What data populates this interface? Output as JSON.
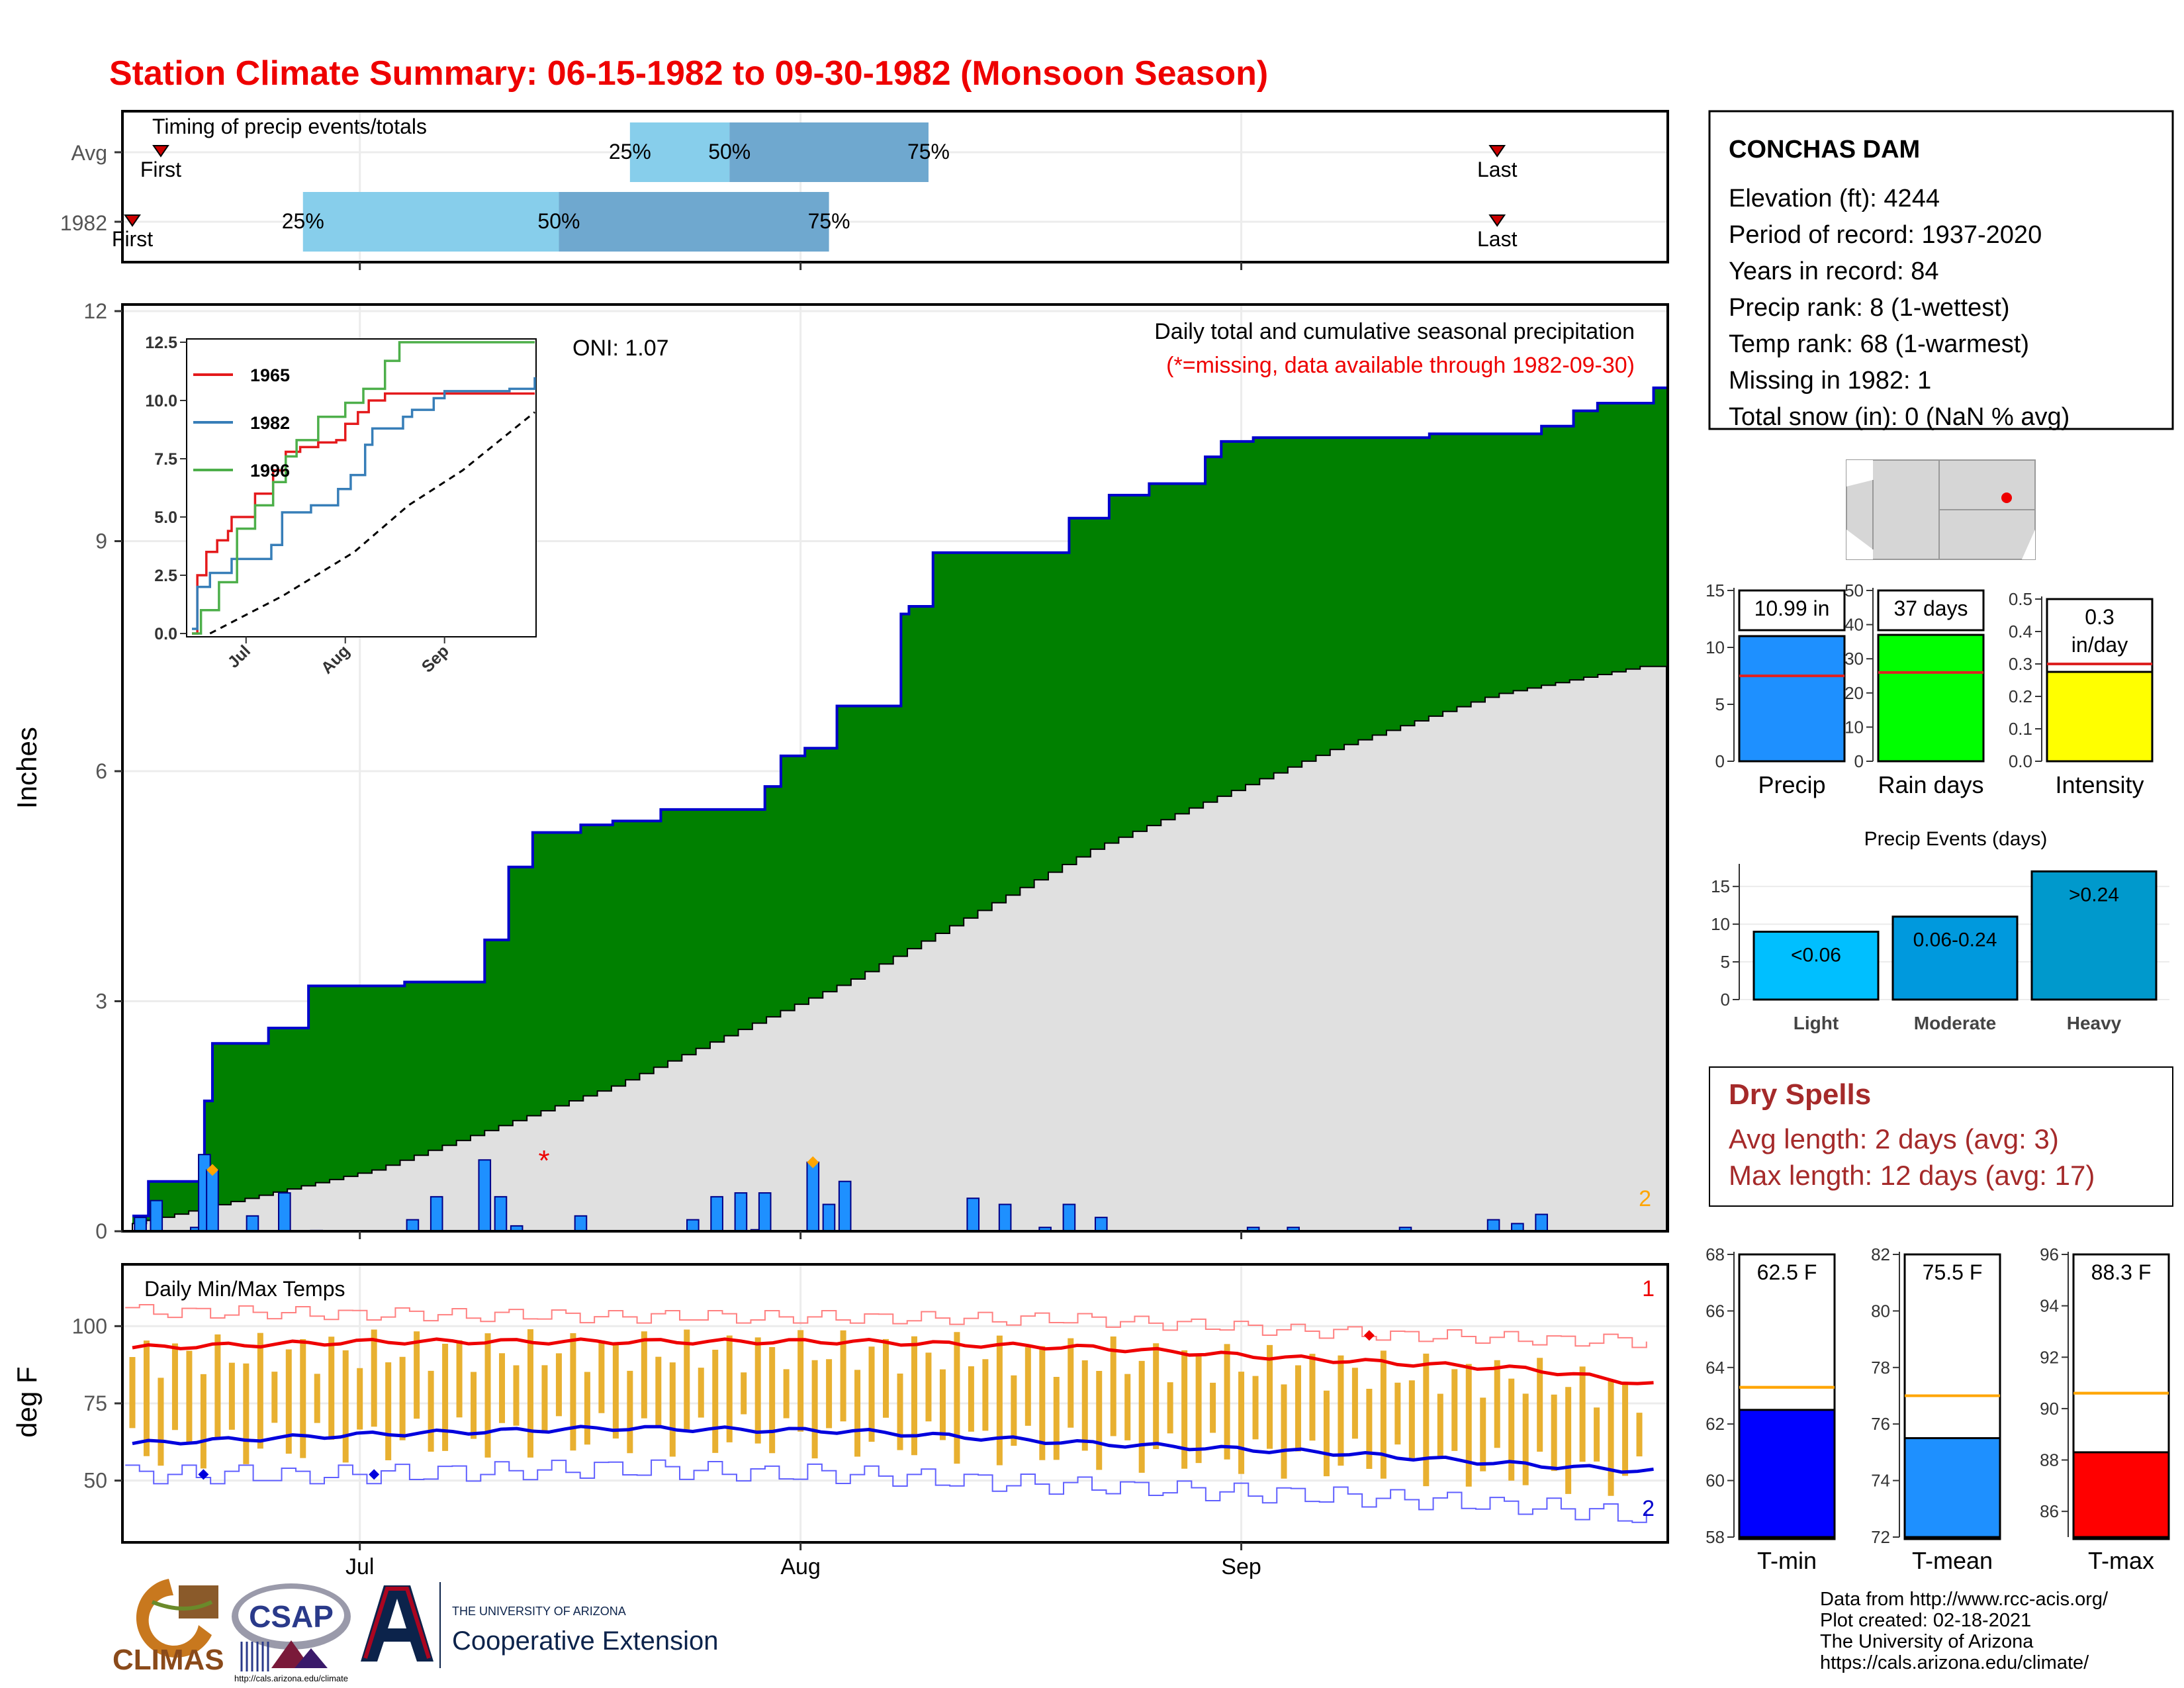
{
  "title": "Station Climate Summary: 06-15-1982 to 09-30-1982 (Monsoon Season)",
  "colors": {
    "title": "#ee0000",
    "precip_fill": "#008000",
    "precip_line": "#0000cc",
    "avg_fill": "#e0e0e0",
    "daily_bar": "#1e90ff",
    "quartile_light": "#87ceeb",
    "quartile_dark": "#6fa8cf",
    "tmax_line": "#ee0000",
    "tmin_line": "#0000dd",
    "temp_bar": "#e8b030",
    "dry_spells": "#a52a2a"
  },
  "timing": {
    "label": "Timing of precip events/totals",
    "rows": [
      {
        "label": "Avg",
        "first": "First",
        "last": "Last",
        "q25": "25%",
        "q50": "50%",
        "q75": "75%",
        "first_date": "1982-06-17",
        "q25_date": "1982-07-20",
        "q50_date": "1982-07-27",
        "q75_date": "1982-08-10",
        "last_date": "1982-09-19"
      },
      {
        "label": "1982",
        "first": "First",
        "last": "Last",
        "q25": "25%",
        "q50": "50%",
        "q75": "75%",
        "first_date": "1982-06-15",
        "q25_date": "1982-06-27",
        "q50_date": "1982-07-15",
        "q75_date": "1982-08-03",
        "last_date": "1982-09-19"
      }
    ]
  },
  "station": {
    "name": "CONCHAS DAM",
    "lines": [
      "Elevation (ft): 4244",
      "Period of record: 1937-2020",
      "Years in record: 84",
      "Precip rank: 8 (1-wettest)",
      "Temp rank: 68 (1-warmest)",
      "Missing in 1982: 1",
      "Total snow (in): 0 (NaN % avg)"
    ]
  },
  "precip_panel": {
    "oni": "ONI: 1.07",
    "note1": "Daily total and cumulative seasonal precipitation",
    "note2": "(*=missing, data available through 1982-09-30)",
    "missing_marker": "*",
    "corner_count": "2",
    "ylabel": "Inches",
    "yticks": [
      "0",
      "3",
      "6",
      "9",
      "12"
    ]
  },
  "x_axis": {
    "ticks": [
      "Jul",
      "Aug",
      "Sep"
    ]
  },
  "chart_data": [
    {
      "type": "area",
      "name": "cumulative-precip",
      "x_start": "1982-06-15",
      "x_end": "1982-09-30",
      "ylim": [
        0,
        12
      ],
      "cumulative_1982": [
        [
          0,
          0.2
        ],
        [
          2,
          0.65
        ],
        [
          9,
          1.7
        ],
        [
          10,
          2.45
        ],
        [
          17,
          2.65
        ],
        [
          22,
          3.2
        ],
        [
          34,
          3.25
        ],
        [
          44,
          3.8
        ],
        [
          47,
          4.75
        ],
        [
          50,
          5.2
        ],
        [
          56,
          5.3
        ],
        [
          60,
          5.35
        ],
        [
          66,
          5.5
        ],
        [
          79,
          5.8
        ],
        [
          81,
          6.2
        ],
        [
          84,
          6.3
        ],
        [
          88,
          6.85
        ],
        [
          96,
          8.05
        ],
        [
          97,
          8.15
        ],
        [
          100,
          8.85
        ],
        [
          117,
          9.3
        ],
        [
          122,
          9.6
        ],
        [
          127,
          9.75
        ],
        [
          134,
          10.1
        ],
        [
          136,
          10.3
        ],
        [
          140,
          10.35
        ],
        [
          162,
          10.4
        ],
        [
          176,
          10.5
        ],
        [
          180,
          10.7
        ],
        [
          183,
          10.8
        ],
        [
          190,
          11.0
        ]
      ],
      "cumulative_avg": [
        [
          0,
          0.1
        ],
        [
          30,
          0.8
        ],
        [
          60,
          1.9
        ],
        [
          90,
          3.3
        ],
        [
          120,
          5.0
        ],
        [
          150,
          6.3
        ],
        [
          170,
          7.0
        ],
        [
          190,
          7.4
        ]
      ],
      "daily_bars": [
        [
          1,
          0.18
        ],
        [
          3,
          0.4
        ],
        [
          8,
          0.05
        ],
        [
          9,
          1.0
        ],
        [
          10,
          0.8
        ],
        [
          15,
          0.2
        ],
        [
          19,
          0.5
        ],
        [
          23,
          0.01
        ],
        [
          35,
          0.15
        ],
        [
          38,
          0.45
        ],
        [
          44,
          0.93
        ],
        [
          46,
          0.45
        ],
        [
          48,
          0.07
        ],
        [
          56,
          0.2
        ],
        [
          70,
          0.15
        ],
        [
          73,
          0.45
        ],
        [
          76,
          0.5
        ],
        [
          78,
          0.02
        ],
        [
          79,
          0.5
        ],
        [
          85,
          0.9
        ],
        [
          87,
          0.35
        ],
        [
          89,
          0.65
        ],
        [
          105,
          0.43
        ],
        [
          109,
          0.35
        ],
        [
          114,
          0.05
        ],
        [
          117,
          0.35
        ],
        [
          121,
          0.18
        ],
        [
          140,
          0.05
        ],
        [
          145,
          0.05
        ],
        [
          159,
          0.05
        ],
        [
          170,
          0.15
        ],
        [
          173,
          0.1
        ],
        [
          176,
          0.22
        ]
      ]
    },
    {
      "type": "line",
      "name": "inset-cumulative",
      "x_ticks": [
        "Jul",
        "Aug",
        "Sep"
      ],
      "y_ticks": [
        "0.0",
        "2.5",
        "5.0",
        "7.5",
        "10.0",
        "12.5"
      ],
      "ylim": [
        0,
        12.5
      ],
      "series": [
        {
          "name": "1965",
          "color": "#e41a1c",
          "values": [
            [
              0,
              0
            ],
            [
              3,
              2.5
            ],
            [
              8,
              3.5
            ],
            [
              14,
              4.0
            ],
            [
              20,
              4.4
            ],
            [
              22,
              5.0
            ],
            [
              35,
              6.0
            ],
            [
              45,
              7.0
            ],
            [
              52,
              7.8
            ],
            [
              60,
              8.0
            ],
            [
              70,
              8.2
            ],
            [
              80,
              8.3
            ],
            [
              85,
              9.0
            ],
            [
              92,
              9.5
            ],
            [
              98,
              10.0
            ],
            [
              107,
              10.3
            ]
          ]
        },
        {
          "name": "1982",
          "color": "#377eb8",
          "values": [
            [
              0,
              0.2
            ],
            [
              3,
              2.0
            ],
            [
              10,
              2.6
            ],
            [
              22,
              3.2
            ],
            [
              44,
              3.8
            ],
            [
              50,
              5.2
            ],
            [
              66,
              5.5
            ],
            [
              81,
              6.2
            ],
            [
              88,
              6.8
            ],
            [
              96,
              8.1
            ],
            [
              100,
              8.8
            ],
            [
              117,
              9.3
            ],
            [
              122,
              9.6
            ],
            [
              134,
              10.1
            ],
            [
              140,
              10.4
            ],
            [
              176,
              10.5
            ],
            [
              190,
              11.0
            ]
          ]
        },
        {
          "name": "1996",
          "color": "#4daf4a",
          "values": [
            [
              0,
              0
            ],
            [
              5,
              1.0
            ],
            [
              15,
              2.2
            ],
            [
              25,
              4.5
            ],
            [
              35,
              5.5
            ],
            [
              45,
              6.5
            ],
            [
              52,
              7.6
            ],
            [
              58,
              8.3
            ],
            [
              70,
              9.3
            ],
            [
              85,
              9.9
            ],
            [
              95,
              10.5
            ],
            [
              107,
              11.7
            ],
            [
              115,
              12.5
            ]
          ]
        }
      ],
      "average_dashed": true
    },
    {
      "type": "bar",
      "name": "precip-totals",
      "categories": [
        "Precip",
        "Rain days",
        "Intensity"
      ],
      "values": [
        10.99,
        37,
        0.3
      ],
      "labels": [
        "10.99 in",
        "37 days",
        "0.3 in/day"
      ],
      "averages": [
        7.5,
        26,
        0.3
      ],
      "ylims": [
        [
          0,
          15
        ],
        [
          0,
          50
        ],
        [
          0,
          0.5
        ]
      ],
      "yticks": [
        [
          "0",
          "5",
          "10",
          "15"
        ],
        [
          "0",
          "10",
          "20",
          "30",
          "40",
          "50"
        ],
        [
          "0.0",
          "0.1",
          "0.2",
          "0.3",
          "0.4",
          "0.5"
        ]
      ],
      "colors": [
        "#1e90ff",
        "#00ff00",
        "#ffff00"
      ]
    },
    {
      "type": "bar",
      "name": "precip-events",
      "title": "Precip Events (days)",
      "categories": [
        "Light",
        "Moderate",
        "Heavy"
      ],
      "labels": [
        "<0.06",
        "0.06-0.24",
        ">0.24"
      ],
      "values": [
        9,
        11,
        17
      ],
      "ylim": [
        0,
        17
      ],
      "yticks": [
        "0",
        "5",
        "10",
        "15"
      ],
      "colors": [
        "#00bfff",
        "#0099dd",
        "#0099cc"
      ]
    },
    {
      "type": "line",
      "name": "daily-temps",
      "title": "Daily Min/Max Temps",
      "ylabel": "deg F",
      "yticks": [
        "50",
        "75",
        "100"
      ],
      "ylim": [
        40,
        120
      ],
      "corner_top": "1",
      "corner_bottom": "2",
      "tmax_avg": [
        [
          0,
          93
        ],
        [
          30,
          95
        ],
        [
          60,
          95
        ],
        [
          90,
          95
        ],
        [
          120,
          93
        ],
        [
          150,
          89
        ],
        [
          175,
          86
        ],
        [
          190,
          81
        ]
      ],
      "tmin_avg": [
        [
          0,
          62
        ],
        [
          30,
          65
        ],
        [
          60,
          67
        ],
        [
          90,
          66
        ],
        [
          120,
          62
        ],
        [
          150,
          59
        ],
        [
          175,
          55
        ],
        [
          190,
          53
        ]
      ],
      "tmax_record": [
        [
          0,
          105
        ],
        [
          30,
          104
        ],
        [
          60,
          103
        ],
        [
          90,
          103
        ],
        [
          120,
          102
        ],
        [
          150,
          98
        ],
        [
          175,
          96
        ],
        [
          190,
          95
        ]
      ],
      "tmin_record": [
        [
          0,
          52
        ],
        [
          30,
          52
        ],
        [
          60,
          54
        ],
        [
          90,
          52
        ],
        [
          120,
          48
        ],
        [
          150,
          45
        ],
        [
          175,
          42
        ],
        [
          190,
          38
        ]
      ]
    },
    {
      "type": "bar",
      "name": "temp-summary",
      "categories": [
        "T-min",
        "T-mean",
        "T-max"
      ],
      "values": [
        62.5,
        75.5,
        88.3
      ],
      "labels": [
        "62.5 F",
        "75.5 F",
        "88.3 F"
      ],
      "averages": [
        63.3,
        77.0,
        90.6
      ],
      "ylims": [
        [
          58,
          68
        ],
        [
          72,
          82
        ],
        [
          85,
          96
        ]
      ],
      "yticks": [
        [
          "58",
          "60",
          "62",
          "64",
          "66",
          "68"
        ],
        [
          "72",
          "74",
          "76",
          "78",
          "80",
          "82"
        ],
        [
          "86",
          "88",
          "90",
          "92",
          "94",
          "96"
        ]
      ],
      "colors": [
        "#0000ff",
        "#1e90ff",
        "#ff0000"
      ]
    }
  ],
  "dry_spells": {
    "title": "Dry Spells",
    "avg": "Avg length: 2 days (avg: 3)",
    "max": "Max length: 12 days (avg: 17)"
  },
  "footer": {
    "lines": [
      "Data from http://www.rcc-acis.org/",
      "Plot created: 02-18-2021",
      "The University of Arizona",
      "https://cals.arizona.edu/climate/"
    ],
    "logo1": "CLIMAS",
    "logo2": "CSAP",
    "logo2_url": "http://cals.arizona.edu/climate",
    "logo3_top": "THE UNIVERSITY OF ARIZONA",
    "logo3_bottom": "Cooperative Extension"
  }
}
